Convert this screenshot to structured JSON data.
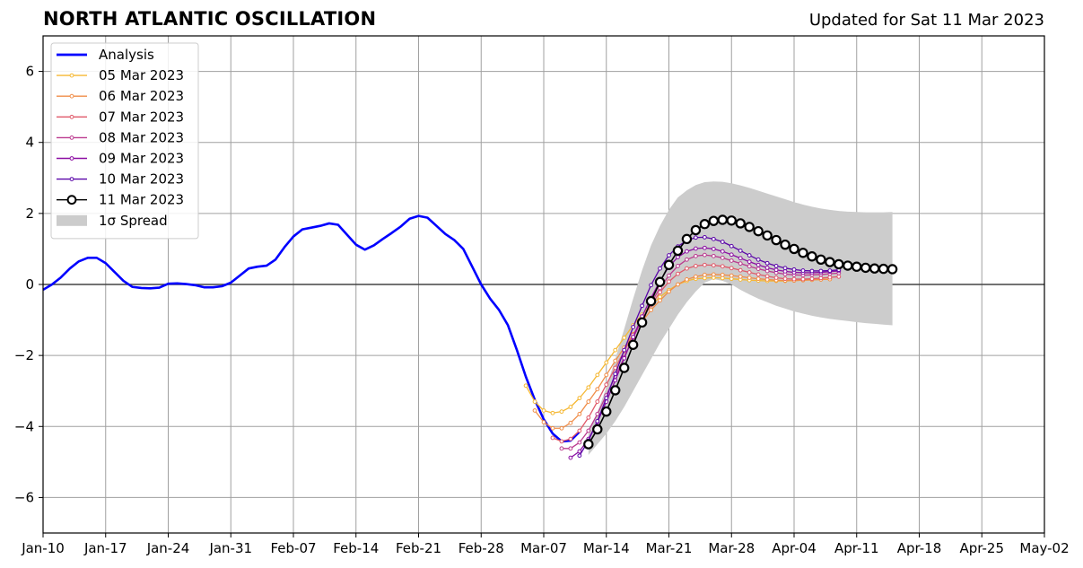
{
  "header": {
    "title": "NORTH ATLANTIC OSCILLATION",
    "subtitle": "Updated for Sat 11 Mar 2023"
  },
  "chart_data": {
    "type": "line",
    "title": "NORTH ATLANTIC OSCILLATION",
    "subtitle": "Updated for Sat 11 Mar 2023",
    "xlabel": "",
    "ylabel": "",
    "x_axis": {
      "type": "date",
      "range": [
        "2023-01-10",
        "2023-05-02"
      ],
      "tick_labels": [
        "Jan-10",
        "Jan-17",
        "Jan-24",
        "Jan-31",
        "Feb-07",
        "Feb-14",
        "Feb-21",
        "Feb-28",
        "Mar-07",
        "Mar-14",
        "Mar-21",
        "Mar-28",
        "Apr-04",
        "Apr-11",
        "Apr-18",
        "Apr-25",
        "May-02"
      ]
    },
    "y_axis": {
      "range": [
        -7,
        7
      ],
      "ticks": [
        -6,
        -4,
        -2,
        0,
        2,
        4,
        6
      ],
      "tick_labels": [
        "−6",
        "−4",
        "−2",
        "0",
        "2",
        "4",
        "6"
      ]
    },
    "grid": true,
    "zero_line": true,
    "legend_position": "upper-left",
    "series": [
      {
        "name": "Analysis",
        "color": "#0000ff",
        "marker": "none",
        "start": "2023-01-10",
        "values": [
          -0.15,
          0.0,
          0.2,
          0.45,
          0.65,
          0.75,
          0.75,
          0.6,
          0.35,
          0.1,
          -0.07,
          -0.1,
          -0.11,
          -0.09,
          0.02,
          0.03,
          0.01,
          -0.02,
          -0.08,
          -0.08,
          -0.05,
          0.05,
          0.25,
          0.45,
          0.5,
          0.53,
          0.7,
          1.05,
          1.35,
          1.55,
          1.6,
          1.65,
          1.72,
          1.68,
          1.4,
          1.12,
          0.98,
          1.1,
          1.28,
          1.45,
          1.63,
          1.85,
          1.93,
          1.88,
          1.65,
          1.42,
          1.25,
          1.0,
          0.5,
          0.0,
          -0.4,
          -0.72,
          -1.15,
          -1.85,
          -2.6,
          -3.25,
          -3.8,
          -4.2,
          -4.42,
          -4.4,
          -4.15
        ]
      },
      {
        "name": "05 Mar 2023",
        "color": "#f5b833",
        "marker": "small-dot",
        "start": "2023-03-05",
        "values": [
          -2.85,
          -3.3,
          -3.55,
          -3.62,
          -3.58,
          -3.45,
          -3.2,
          -2.9,
          -2.55,
          -2.2,
          -1.85,
          -1.5,
          -1.15,
          -0.85,
          -0.58,
          -0.35,
          -0.16,
          0.0,
          0.1,
          0.16,
          0.18,
          0.19,
          0.18,
          0.16,
          0.14,
          0.12,
          0.11,
          0.1,
          0.1,
          0.1,
          0.11,
          0.12,
          0.13,
          0.14,
          0.15
        ]
      },
      {
        "name": "06 Mar 2023",
        "color": "#f08d48",
        "marker": "small-dot",
        "start": "2023-03-06",
        "values": [
          -3.55,
          -3.88,
          -4.05,
          -4.05,
          -3.9,
          -3.65,
          -3.3,
          -2.95,
          -2.55,
          -2.15,
          -1.78,
          -1.4,
          -1.05,
          -0.72,
          -0.45,
          -0.2,
          0.0,
          0.14,
          0.22,
          0.27,
          0.28,
          0.27,
          0.25,
          0.22,
          0.19,
          0.16,
          0.14,
          0.12,
          0.11,
          0.11,
          0.12,
          0.13,
          0.14,
          0.15
        ]
      },
      {
        "name": "07 Mar 2023",
        "color": "#e05a6a",
        "marker": "small-dot",
        "start": "2023-03-08",
        "values": [
          -4.32,
          -4.42,
          -4.35,
          -4.12,
          -3.75,
          -3.3,
          -2.82,
          -2.35,
          -1.88,
          -1.42,
          -0.98,
          -0.58,
          -0.22,
          0.08,
          0.3,
          0.45,
          0.52,
          0.55,
          0.54,
          0.51,
          0.46,
          0.4,
          0.34,
          0.28,
          0.23,
          0.19,
          0.16,
          0.15,
          0.15,
          0.16,
          0.18,
          0.2,
          0.22
        ]
      },
      {
        "name": "08 Mar 2023",
        "color": "#bb3b8f",
        "marker": "small-dot",
        "start": "2023-03-09",
        "values": [
          -4.62,
          -4.62,
          -4.45,
          -4.12,
          -3.65,
          -3.12,
          -2.6,
          -2.05,
          -1.5,
          -1.0,
          -0.52,
          -0.1,
          0.25,
          0.52,
          0.7,
          0.8,
          0.83,
          0.8,
          0.75,
          0.67,
          0.59,
          0.51,
          0.44,
          0.38,
          0.33,
          0.29,
          0.27,
          0.26,
          0.27,
          0.28,
          0.3,
          0.32
        ]
      },
      {
        "name": "09 Mar 2023",
        "color": "#8c0fa3",
        "marker": "small-dot",
        "start": "2023-03-10",
        "values": [
          -4.88,
          -4.7,
          -4.35,
          -3.88,
          -3.3,
          -2.7,
          -2.08,
          -1.48,
          -0.9,
          -0.38,
          0.1,
          0.5,
          0.77,
          0.93,
          1.01,
          1.03,
          1.0,
          0.93,
          0.84,
          0.74,
          0.64,
          0.55,
          0.47,
          0.41,
          0.37,
          0.34,
          0.33,
          0.33,
          0.34,
          0.36,
          0.38
        ]
      },
      {
        "name": "10 Mar 2023",
        "color": "#5a05a8",
        "marker": "small-dot",
        "start": "2023-03-11",
        "values": [
          -4.82,
          -4.4,
          -3.85,
          -3.2,
          -2.52,
          -1.85,
          -1.2,
          -0.6,
          -0.02,
          0.45,
          0.82,
          1.07,
          1.24,
          1.32,
          1.33,
          1.28,
          1.2,
          1.08,
          0.95,
          0.82,
          0.7,
          0.6,
          0.52,
          0.46,
          0.42,
          0.39,
          0.38,
          0.38,
          0.39,
          0.41
        ]
      },
      {
        "name": "11 Mar 2023",
        "color": "#000000",
        "marker": "open-circle",
        "start": "2023-03-12",
        "values": [
          -4.5,
          -4.08,
          -3.58,
          -2.98,
          -2.35,
          -1.7,
          -1.07,
          -0.47,
          0.07,
          0.55,
          0.95,
          1.28,
          1.53,
          1.7,
          1.79,
          1.82,
          1.8,
          1.72,
          1.62,
          1.5,
          1.38,
          1.25,
          1.12,
          1.0,
          0.89,
          0.79,
          0.7,
          0.63,
          0.57,
          0.53,
          0.5,
          0.47,
          0.45,
          0.44,
          0.43
        ]
      }
    ],
    "spread": {
      "name": "1σ Spread",
      "color": "#cccccc",
      "start": "2023-03-12",
      "upper": [
        -4.2,
        -3.6,
        -2.9,
        -2.1,
        -1.25,
        -0.4,
        0.4,
        1.1,
        1.65,
        2.1,
        2.45,
        2.65,
        2.8,
        2.88,
        2.9,
        2.89,
        2.85,
        2.79,
        2.72,
        2.64,
        2.56,
        2.48,
        2.4,
        2.32,
        2.25,
        2.19,
        2.14,
        2.1,
        2.07,
        2.05,
        2.04,
        2.03,
        2.03,
        2.03,
        2.04
      ],
      "lower": [
        -4.8,
        -4.5,
        -4.2,
        -3.85,
        -3.45,
        -3.0,
        -2.55,
        -2.1,
        -1.65,
        -1.25,
        -0.85,
        -0.5,
        -0.2,
        0.05,
        0.15,
        0.1,
        0.0,
        -0.15,
        -0.28,
        -0.4,
        -0.5,
        -0.6,
        -0.68,
        -0.76,
        -0.82,
        -0.88,
        -0.93,
        -0.97,
        -1.0,
        -1.03,
        -1.06,
        -1.09,
        -1.11,
        -1.13,
        -1.15
      ]
    }
  }
}
